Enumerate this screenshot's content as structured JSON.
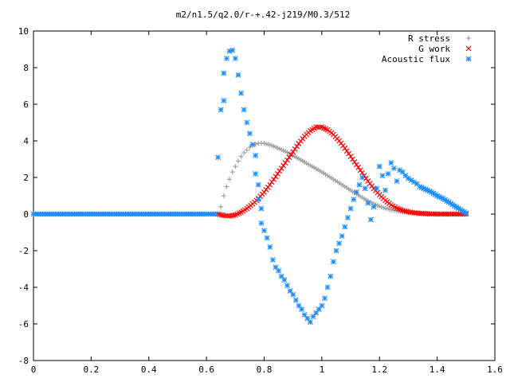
{
  "chart_data": {
    "type": "scatter",
    "title": "m2/n1.5/q2.0/r-+.42-j219/M0.3/512",
    "xlabel": "",
    "ylabel": "",
    "xlim": [
      0,
      1.6
    ],
    "ylim": [
      -8,
      10
    ],
    "x_ticks": [
      "0",
      "0.2",
      "0.4",
      "0.6",
      "0.8",
      "1",
      "1.2",
      "1.4",
      "1.6"
    ],
    "y_ticks": [
      "10",
      "8",
      "6",
      "4",
      "2",
      "0",
      "-2",
      "-4",
      "-6",
      "-8"
    ],
    "grid": false,
    "legend_position": "top-right",
    "series": [
      {
        "name": "R stress",
        "marker": "plus",
        "color": "#a0a0a0",
        "points": [
          [
            0.64,
            0.0
          ],
          [
            0.65,
            0.4
          ],
          [
            0.66,
            1.0
          ],
          [
            0.67,
            1.5
          ],
          [
            0.68,
            1.9
          ],
          [
            0.69,
            2.3
          ],
          [
            0.7,
            2.6
          ],
          [
            0.71,
            2.9
          ],
          [
            0.72,
            3.15
          ],
          [
            0.73,
            3.35
          ],
          [
            0.74,
            3.5
          ],
          [
            0.75,
            3.65
          ],
          [
            0.76,
            3.75
          ],
          [
            0.77,
            3.82
          ],
          [
            0.78,
            3.87
          ],
          [
            0.79,
            3.88
          ],
          [
            0.8,
            3.86
          ],
          [
            0.82,
            3.78
          ],
          [
            0.84,
            3.66
          ],
          [
            0.86,
            3.52
          ],
          [
            0.88,
            3.37
          ],
          [
            0.9,
            3.2
          ],
          [
            0.92,
            3.02
          ],
          [
            0.94,
            2.84
          ],
          [
            0.96,
            2.66
          ],
          [
            0.98,
            2.48
          ],
          [
            1.0,
            2.3
          ],
          [
            1.02,
            2.1
          ],
          [
            1.04,
            1.9
          ],
          [
            1.06,
            1.7
          ],
          [
            1.08,
            1.5
          ],
          [
            1.1,
            1.3
          ],
          [
            1.12,
            1.1
          ],
          [
            1.14,
            0.9
          ],
          [
            1.16,
            0.72
          ],
          [
            1.18,
            0.56
          ],
          [
            1.2,
            0.42
          ],
          [
            1.22,
            0.32
          ],
          [
            1.24,
            0.24
          ],
          [
            1.26,
            0.18
          ],
          [
            1.28,
            0.13
          ],
          [
            1.3,
            0.09
          ],
          [
            1.32,
            0.06
          ],
          [
            1.34,
            0.04
          ],
          [
            1.36,
            0.03
          ],
          [
            1.38,
            0.02
          ],
          [
            1.4,
            0.01
          ],
          [
            1.42,
            0.01
          ],
          [
            1.44,
            0.0
          ],
          [
            1.46,
            0.0
          ],
          [
            1.48,
            0.0
          ],
          [
            1.5,
            0.0
          ]
        ]
      },
      {
        "name": "G work",
        "marker": "cross",
        "color": "#ff0000",
        "points": [
          [
            0.64,
            0.0
          ],
          [
            0.66,
            -0.08
          ],
          [
            0.68,
            -0.1
          ],
          [
            0.7,
            -0.05
          ],
          [
            0.72,
            0.1
          ],
          [
            0.74,
            0.3
          ],
          [
            0.76,
            0.55
          ],
          [
            0.78,
            0.85
          ],
          [
            0.8,
            1.2
          ],
          [
            0.82,
            1.6
          ],
          [
            0.84,
            2.05
          ],
          [
            0.86,
            2.5
          ],
          [
            0.88,
            2.95
          ],
          [
            0.9,
            3.4
          ],
          [
            0.92,
            3.85
          ],
          [
            0.94,
            4.25
          ],
          [
            0.96,
            4.55
          ],
          [
            0.98,
            4.75
          ],
          [
            1.0,
            4.75
          ],
          [
            1.02,
            4.6
          ],
          [
            1.04,
            4.35
          ],
          [
            1.06,
            4.0
          ],
          [
            1.08,
            3.6
          ],
          [
            1.1,
            3.15
          ],
          [
            1.12,
            2.7
          ],
          [
            1.14,
            2.25
          ],
          [
            1.16,
            1.8
          ],
          [
            1.18,
            1.4
          ],
          [
            1.2,
            1.05
          ],
          [
            1.22,
            0.75
          ],
          [
            1.24,
            0.5
          ],
          [
            1.26,
            0.32
          ],
          [
            1.28,
            0.2
          ],
          [
            1.3,
            0.12
          ],
          [
            1.32,
            0.07
          ],
          [
            1.34,
            0.04
          ],
          [
            1.36,
            0.02
          ],
          [
            1.38,
            0.01
          ],
          [
            1.4,
            0.0
          ],
          [
            1.42,
            0.0
          ],
          [
            1.44,
            0.0
          ],
          [
            1.46,
            0.0
          ],
          [
            1.48,
            0.0
          ],
          [
            1.5,
            0.0
          ]
        ]
      },
      {
        "name": "Acoustic flux",
        "marker": "star",
        "color": "#1e90ff",
        "points": [
          [
            0.0,
            0.0
          ],
          [
            0.05,
            0.0
          ],
          [
            0.1,
            0.0
          ],
          [
            0.15,
            0.0
          ],
          [
            0.2,
            0.0
          ],
          [
            0.25,
            0.0
          ],
          [
            0.3,
            0.0
          ],
          [
            0.35,
            0.0
          ],
          [
            0.4,
            0.0
          ],
          [
            0.45,
            0.0
          ],
          [
            0.5,
            0.0
          ],
          [
            0.55,
            0.0
          ],
          [
            0.6,
            0.0
          ],
          [
            0.63,
            0.0
          ],
          [
            0.64,
            3.1
          ],
          [
            0.65,
            5.7
          ],
          [
            0.66,
            6.2
          ],
          [
            0.66,
            7.7
          ],
          [
            0.67,
            8.5
          ],
          [
            0.68,
            8.9
          ],
          [
            0.69,
            8.95
          ],
          [
            0.7,
            8.5
          ],
          [
            0.71,
            7.6
          ],
          [
            0.72,
            6.6
          ],
          [
            0.73,
            5.7
          ],
          [
            0.74,
            5.0
          ],
          [
            0.75,
            4.4
          ],
          [
            0.76,
            3.8
          ],
          [
            0.77,
            3.2
          ],
          [
            0.77,
            2.2
          ],
          [
            0.78,
            1.6
          ],
          [
            0.78,
            0.8
          ],
          [
            0.79,
            0.3
          ],
          [
            0.79,
            -0.5
          ],
          [
            0.8,
            -0.9
          ],
          [
            0.81,
            -1.3
          ],
          [
            0.82,
            -1.8
          ],
          [
            0.83,
            -2.5
          ],
          [
            0.84,
            -2.9
          ],
          [
            0.85,
            -3.1
          ],
          [
            0.86,
            -3.4
          ],
          [
            0.87,
            -3.6
          ],
          [
            0.88,
            -3.9
          ],
          [
            0.89,
            -4.2
          ],
          [
            0.9,
            -4.4
          ],
          [
            0.91,
            -4.7
          ],
          [
            0.92,
            -5.0
          ],
          [
            0.93,
            -5.2
          ],
          [
            0.94,
            -5.5
          ],
          [
            0.95,
            -5.7
          ],
          [
            0.96,
            -5.9
          ],
          [
            0.97,
            -5.6
          ],
          [
            0.98,
            -5.4
          ],
          [
            0.99,
            -5.2
          ],
          [
            1.0,
            -5.0
          ],
          [
            1.01,
            -4.6
          ],
          [
            1.02,
            -4.0
          ],
          [
            1.03,
            -3.4
          ],
          [
            1.04,
            -2.6
          ],
          [
            1.05,
            -2.0
          ],
          [
            1.06,
            -1.6
          ],
          [
            1.07,
            -1.2
          ],
          [
            1.08,
            -0.7
          ],
          [
            1.09,
            -0.2
          ],
          [
            1.1,
            0.3
          ],
          [
            1.11,
            0.8
          ],
          [
            1.12,
            1.2
          ],
          [
            1.13,
            1.6
          ],
          [
            1.14,
            2.0
          ],
          [
            1.15,
            1.4
          ],
          [
            1.16,
            0.6
          ],
          [
            1.17,
            -0.3
          ],
          [
            1.18,
            0.4
          ],
          [
            1.19,
            1.4
          ],
          [
            1.2,
            2.6
          ],
          [
            1.21,
            2.1
          ],
          [
            1.22,
            1.3
          ],
          [
            1.23,
            2.2
          ],
          [
            1.24,
            2.8
          ],
          [
            1.25,
            2.5
          ],
          [
            1.26,
            1.8
          ],
          [
            1.27,
            2.4
          ],
          [
            1.28,
            2.3
          ],
          [
            1.29,
            2.1
          ],
          [
            1.3,
            1.95
          ],
          [
            1.31,
            1.85
          ],
          [
            1.32,
            1.75
          ],
          [
            1.33,
            1.65
          ],
          [
            1.34,
            1.5
          ],
          [
            1.36,
            1.35
          ],
          [
            1.38,
            1.2
          ],
          [
            1.4,
            1.0
          ],
          [
            1.42,
            0.85
          ],
          [
            1.44,
            0.65
          ],
          [
            1.46,
            0.45
          ],
          [
            1.48,
            0.25
          ],
          [
            1.5,
            0.05
          ]
        ]
      }
    ]
  }
}
